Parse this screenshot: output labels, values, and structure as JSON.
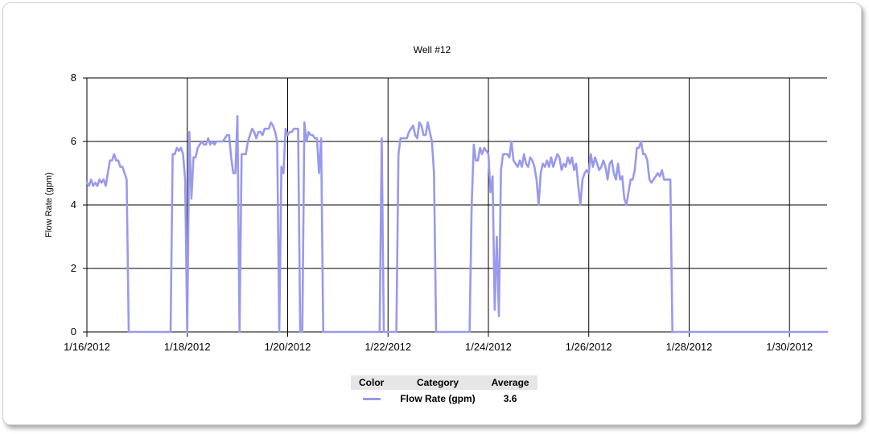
{
  "chart_data": {
    "type": "line",
    "title": "Well #12",
    "xlabel": "",
    "ylabel": "Flow Rate (gpm)",
    "xlim": [
      "2012-01-16",
      "2012-01-30T18:00"
    ],
    "ylim": [
      0,
      8
    ],
    "y_ticks": [
      0,
      2,
      4,
      6,
      8
    ],
    "x_ticks": [
      "2012-01-16",
      "2012-01-18",
      "2012-01-20",
      "2012-01-22",
      "2012-01-24",
      "2012-01-26",
      "2012-01-28",
      "2012-01-30"
    ],
    "x_tick_labels": [
      "1/16/2012",
      "1/18/2012",
      "1/20/2012",
      "1/22/2012",
      "1/24/2012",
      "1/26/2012",
      "1/28/2012",
      "1/30/2012"
    ],
    "grid": true,
    "series": [
      {
        "name": "Flow Rate (gpm)",
        "color": "#9999ee",
        "points": [
          [
            "2012-01-16T00:00",
            4.7
          ],
          [
            "2012-01-16T01:00",
            4.6
          ],
          [
            "2012-01-16T02:00",
            4.8
          ],
          [
            "2012-01-16T03:00",
            4.6
          ],
          [
            "2012-01-16T04:00",
            4.7
          ],
          [
            "2012-01-16T05:00",
            4.6
          ],
          [
            "2012-01-16T06:00",
            4.8
          ],
          [
            "2012-01-16T07:00",
            4.7
          ],
          [
            "2012-01-16T08:00",
            4.8
          ],
          [
            "2012-01-16T09:00",
            4.6
          ],
          [
            "2012-01-16T10:00",
            5.0
          ],
          [
            "2012-01-16T11:00",
            5.4
          ],
          [
            "2012-01-16T12:00",
            5.4
          ],
          [
            "2012-01-16T13:00",
            5.6
          ],
          [
            "2012-01-16T14:00",
            5.4
          ],
          [
            "2012-01-16T15:00",
            5.4
          ],
          [
            "2012-01-16T16:00",
            5.2
          ],
          [
            "2012-01-16T17:00",
            5.2
          ],
          [
            "2012-01-16T18:00",
            5.0
          ],
          [
            "2012-01-16T19:00",
            4.8
          ],
          [
            "2012-01-16T20:00",
            0.0
          ],
          [
            "2012-01-17T16:00",
            0.0
          ],
          [
            "2012-01-17T17:00",
            5.6
          ],
          [
            "2012-01-17T18:00",
            5.6
          ],
          [
            "2012-01-17T19:00",
            5.8
          ],
          [
            "2012-01-17T20:00",
            5.7
          ],
          [
            "2012-01-17T21:00",
            5.8
          ],
          [
            "2012-01-17T22:00",
            5.6
          ],
          [
            "2012-01-17T23:00",
            4.8
          ],
          [
            "2012-01-18T00:00",
            0.0
          ],
          [
            "2012-01-18T01:00",
            6.3
          ],
          [
            "2012-01-18T02:00",
            4.2
          ],
          [
            "2012-01-18T03:00",
            5.5
          ],
          [
            "2012-01-18T04:00",
            5.5
          ],
          [
            "2012-01-18T05:00",
            5.8
          ],
          [
            "2012-01-18T06:00",
            5.9
          ],
          [
            "2012-01-18T07:00",
            6.0
          ],
          [
            "2012-01-18T08:00",
            5.9
          ],
          [
            "2012-01-18T09:00",
            5.9
          ],
          [
            "2012-01-18T10:00",
            6.1
          ],
          [
            "2012-01-18T11:00",
            5.9
          ],
          [
            "2012-01-18T12:00",
            6.0
          ],
          [
            "2012-01-18T13:00",
            5.9
          ],
          [
            "2012-01-18T14:00",
            6.0
          ],
          [
            "2012-01-18T15:00",
            6.0
          ],
          [
            "2012-01-18T16:00",
            6.0
          ],
          [
            "2012-01-18T17:00",
            6.0
          ],
          [
            "2012-01-18T18:00",
            6.1
          ],
          [
            "2012-01-18T19:00",
            6.2
          ],
          [
            "2012-01-18T20:00",
            6.2
          ],
          [
            "2012-01-18T21:00",
            5.5
          ],
          [
            "2012-01-18T22:00",
            5.0
          ],
          [
            "2012-01-18T23:00",
            5.0
          ],
          [
            "2012-01-19T00:00",
            6.8
          ],
          [
            "2012-01-19T01:00",
            0.0
          ],
          [
            "2012-01-19T02:00",
            5.6
          ],
          [
            "2012-01-19T03:00",
            5.6
          ],
          [
            "2012-01-19T04:00",
            5.6
          ],
          [
            "2012-01-19T05:00",
            6.0
          ],
          [
            "2012-01-19T06:00",
            6.2
          ],
          [
            "2012-01-19T07:00",
            6.4
          ],
          [
            "2012-01-19T08:00",
            6.3
          ],
          [
            "2012-01-19T09:00",
            6.1
          ],
          [
            "2012-01-19T10:00",
            6.3
          ],
          [
            "2012-01-19T11:00",
            6.3
          ],
          [
            "2012-01-19T12:00",
            6.2
          ],
          [
            "2012-01-19T13:00",
            6.4
          ],
          [
            "2012-01-19T14:00",
            6.4
          ],
          [
            "2012-01-19T15:00",
            6.4
          ],
          [
            "2012-01-19T16:00",
            6.6
          ],
          [
            "2012-01-19T17:00",
            6.5
          ],
          [
            "2012-01-19T18:00",
            6.3
          ],
          [
            "2012-01-19T19:00",
            6.0
          ],
          [
            "2012-01-19T20:00",
            0.0
          ],
          [
            "2012-01-19T21:00",
            5.2
          ],
          [
            "2012-01-19T22:00",
            5.0
          ],
          [
            "2012-01-19T23:00",
            6.4
          ],
          [
            "2012-01-20T00:00",
            6.2
          ],
          [
            "2012-01-20T01:00",
            6.3
          ],
          [
            "2012-01-20T02:00",
            6.3
          ],
          [
            "2012-01-20T03:00",
            6.4
          ],
          [
            "2012-01-20T04:00",
            6.4
          ],
          [
            "2012-01-20T05:00",
            6.4
          ],
          [
            "2012-01-20T06:00",
            0.0
          ],
          [
            "2012-01-20T07:00",
            0.0
          ],
          [
            "2012-01-20T08:00",
            6.6
          ],
          [
            "2012-01-20T09:00",
            6.0
          ],
          [
            "2012-01-20T10:00",
            6.3
          ],
          [
            "2012-01-20T11:00",
            6.2
          ],
          [
            "2012-01-20T12:00",
            6.2
          ],
          [
            "2012-01-20T13:00",
            6.1
          ],
          [
            "2012-01-20T14:00",
            6.1
          ],
          [
            "2012-01-20T15:00",
            5.0
          ],
          [
            "2012-01-20T16:00",
            6.1
          ],
          [
            "2012-01-20T17:00",
            0.0
          ],
          [
            "2012-01-21T20:00",
            0.0
          ],
          [
            "2012-01-21T21:00",
            6.1
          ],
          [
            "2012-01-21T22:00",
            0.0
          ],
          [
            "2012-01-22T04:00",
            0.0
          ],
          [
            "2012-01-22T05:00",
            5.6
          ],
          [
            "2012-01-22T06:00",
            6.1
          ],
          [
            "2012-01-22T07:00",
            6.1
          ],
          [
            "2012-01-22T08:00",
            6.1
          ],
          [
            "2012-01-22T09:00",
            6.1
          ],
          [
            "2012-01-22T10:00",
            6.3
          ],
          [
            "2012-01-22T11:00",
            6.4
          ],
          [
            "2012-01-22T12:00",
            6.5
          ],
          [
            "2012-01-22T13:00",
            6.2
          ],
          [
            "2012-01-22T14:00",
            6.1
          ],
          [
            "2012-01-22T15:00",
            6.6
          ],
          [
            "2012-01-22T16:00",
            6.5
          ],
          [
            "2012-01-22T17:00",
            6.2
          ],
          [
            "2012-01-22T18:00",
            6.2
          ],
          [
            "2012-01-22T19:00",
            6.6
          ],
          [
            "2012-01-22T20:00",
            6.3
          ],
          [
            "2012-01-22T21:00",
            6.0
          ],
          [
            "2012-01-22T22:00",
            5.0
          ],
          [
            "2012-01-22T23:00",
            0.0
          ],
          [
            "2012-01-23T15:00",
            0.0
          ],
          [
            "2012-01-23T16:00",
            4.0
          ],
          [
            "2012-01-23T17:00",
            5.9
          ],
          [
            "2012-01-23T18:00",
            5.4
          ],
          [
            "2012-01-23T19:00",
            5.4
          ],
          [
            "2012-01-23T20:00",
            5.8
          ],
          [
            "2012-01-23T21:00",
            5.6
          ],
          [
            "2012-01-23T22:00",
            5.8
          ],
          [
            "2012-01-23T23:00",
            5.7
          ],
          [
            "2012-01-24T00:00",
            5.6
          ],
          [
            "2012-01-24T01:00",
            4.4
          ],
          [
            "2012-01-24T02:00",
            4.9
          ],
          [
            "2012-01-24T03:00",
            0.7
          ],
          [
            "2012-01-24T04:00",
            3.0
          ],
          [
            "2012-01-24T05:00",
            0.5
          ],
          [
            "2012-01-24T06:00",
            5.1
          ],
          [
            "2012-01-24T07:00",
            5.6
          ],
          [
            "2012-01-24T08:00",
            5.6
          ],
          [
            "2012-01-24T09:00",
            5.6
          ],
          [
            "2012-01-24T10:00",
            5.5
          ],
          [
            "2012-01-24T11:00",
            6.0
          ],
          [
            "2012-01-24T12:00",
            5.4
          ],
          [
            "2012-01-24T13:00",
            5.3
          ],
          [
            "2012-01-24T14:00",
            5.2
          ],
          [
            "2012-01-24T15:00",
            5.4
          ],
          [
            "2012-01-24T16:00",
            5.2
          ],
          [
            "2012-01-24T17:00",
            5.6
          ],
          [
            "2012-01-24T18:00",
            5.3
          ],
          [
            "2012-01-24T19:00",
            5.2
          ],
          [
            "2012-01-24T20:00",
            5.5
          ],
          [
            "2012-01-24T21:00",
            5.4
          ],
          [
            "2012-01-24T22:00",
            5.2
          ],
          [
            "2012-01-24T23:00",
            4.8
          ],
          [
            "2012-01-25T00:00",
            4.0
          ],
          [
            "2012-01-25T01:00",
            5.0
          ],
          [
            "2012-01-25T02:00",
            5.3
          ],
          [
            "2012-01-25T03:00",
            5.2
          ],
          [
            "2012-01-25T04:00",
            5.4
          ],
          [
            "2012-01-25T05:00",
            5.2
          ],
          [
            "2012-01-25T06:00",
            5.5
          ],
          [
            "2012-01-25T07:00",
            5.2
          ],
          [
            "2012-01-25T08:00",
            5.4
          ],
          [
            "2012-01-25T09:00",
            5.6
          ],
          [
            "2012-01-25T10:00",
            5.5
          ],
          [
            "2012-01-25T11:00",
            5.1
          ],
          [
            "2012-01-25T12:00",
            5.3
          ],
          [
            "2012-01-25T13:00",
            5.2
          ],
          [
            "2012-01-25T14:00",
            5.5
          ],
          [
            "2012-01-25T15:00",
            5.3
          ],
          [
            "2012-01-25T16:00",
            5.5
          ],
          [
            "2012-01-25T17:00",
            5.1
          ],
          [
            "2012-01-25T18:00",
            5.3
          ],
          [
            "2012-01-25T19:00",
            4.6
          ],
          [
            "2012-01-25T20:00",
            4.0
          ],
          [
            "2012-01-25T21:00",
            4.8
          ],
          [
            "2012-01-25T22:00",
            5.0
          ],
          [
            "2012-01-25T23:00",
            5.1
          ],
          [
            "2012-01-26T00:00",
            5.0
          ],
          [
            "2012-01-26T01:00",
            5.6
          ],
          [
            "2012-01-26T02:00",
            5.2
          ],
          [
            "2012-01-26T03:00",
            5.5
          ],
          [
            "2012-01-26T04:00",
            5.3
          ],
          [
            "2012-01-26T05:00",
            5.1
          ],
          [
            "2012-01-26T06:00",
            5.2
          ],
          [
            "2012-01-26T07:00",
            5.4
          ],
          [
            "2012-01-26T08:00",
            5.2
          ],
          [
            "2012-01-26T09:00",
            4.8
          ],
          [
            "2012-01-26T10:00",
            5.3
          ],
          [
            "2012-01-26T11:00",
            5.4
          ],
          [
            "2012-01-26T12:00",
            5.0
          ],
          [
            "2012-01-26T13:00",
            4.8
          ],
          [
            "2012-01-26T14:00",
            5.3
          ],
          [
            "2012-01-26T15:00",
            4.8
          ],
          [
            "2012-01-26T16:00",
            4.9
          ],
          [
            "2012-01-26T17:00",
            4.2
          ],
          [
            "2012-01-26T18:00",
            4.0
          ],
          [
            "2012-01-26T19:00",
            4.4
          ],
          [
            "2012-01-26T20:00",
            4.8
          ],
          [
            "2012-01-26T21:00",
            4.8
          ],
          [
            "2012-01-26T22:00",
            5.1
          ],
          [
            "2012-01-26T23:00",
            5.8
          ],
          [
            "2012-01-27T00:00",
            5.8
          ],
          [
            "2012-01-27T01:00",
            6.0
          ],
          [
            "2012-01-27T02:00",
            5.6
          ],
          [
            "2012-01-27T03:00",
            5.6
          ],
          [
            "2012-01-27T04:00",
            5.4
          ],
          [
            "2012-01-27T05:00",
            4.8
          ],
          [
            "2012-01-27T06:00",
            4.7
          ],
          [
            "2012-01-27T07:00",
            4.8
          ],
          [
            "2012-01-27T08:00",
            4.9
          ],
          [
            "2012-01-27T09:00",
            5.0
          ],
          [
            "2012-01-27T10:00",
            4.9
          ],
          [
            "2012-01-27T11:00",
            5.1
          ],
          [
            "2012-01-27T12:00",
            4.8
          ],
          [
            "2012-01-27T13:00",
            4.8
          ],
          [
            "2012-01-27T14:00",
            4.8
          ],
          [
            "2012-01-27T15:00",
            4.8
          ],
          [
            "2012-01-27T16:00",
            0.0
          ],
          [
            "2012-01-30T18:00",
            0.0
          ]
        ]
      }
    ],
    "legend": {
      "placement": "bottom-center",
      "headers": [
        "Color",
        "Category",
        "Average"
      ],
      "rows": [
        {
          "category": "Flow Rate (gpm)",
          "average": "3.6",
          "color": "#9999ee"
        }
      ]
    }
  }
}
